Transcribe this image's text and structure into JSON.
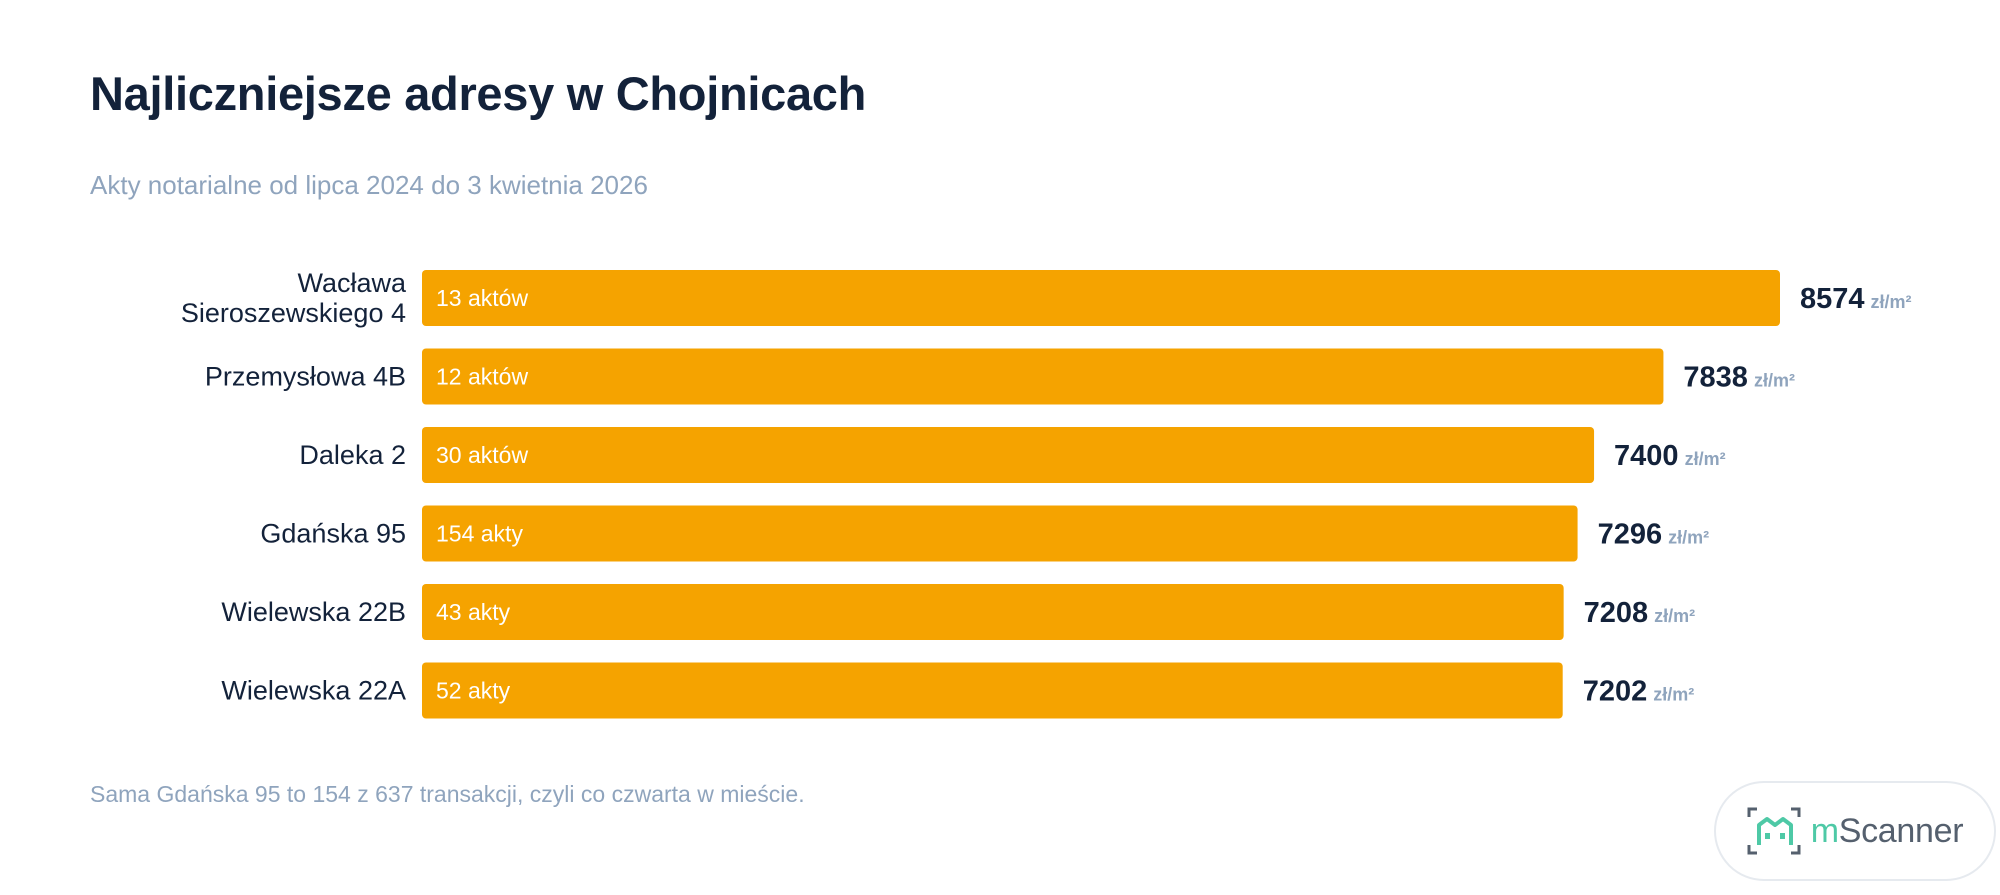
{
  "title": "Najliczniejsze adresy w Chojnicach",
  "subtitle": "Akty notarialne od lipca 2024 do 3 kwietnia 2026",
  "footnote": "Sama Gdańska 95 to 154 z 637 transakcji, czyli co czwarta w mieście.",
  "logo": {
    "prefix": "m",
    "name": "Scanner"
  },
  "colors": {
    "bar": "#f5a300",
    "bar_text": "#ffffff",
    "label": "#13223a",
    "value": "#13223a",
    "unit": "#8fa4bd",
    "logo_accent": "#4ec9a6"
  },
  "chart_data": {
    "type": "bar",
    "orientation": "horizontal",
    "unit": "zł/m²",
    "xlim": [
      0,
      8574
    ],
    "categories": [
      [
        "Wacława",
        "Sieroszewskiego 4"
      ],
      [
        "Przemysłowa 4B"
      ],
      [
        "Daleka 2"
      ],
      [
        "Gdańska 95"
      ],
      [
        "Wielewska 22B"
      ],
      [
        "Wielewska 22A"
      ]
    ],
    "bar_labels": [
      "13 aktów",
      "12 aktów",
      "30 aktów",
      "154 akty",
      "43 akty",
      "52 akty"
    ],
    "values": [
      8574,
      7838,
      7400,
      7296,
      7208,
      7202
    ]
  }
}
